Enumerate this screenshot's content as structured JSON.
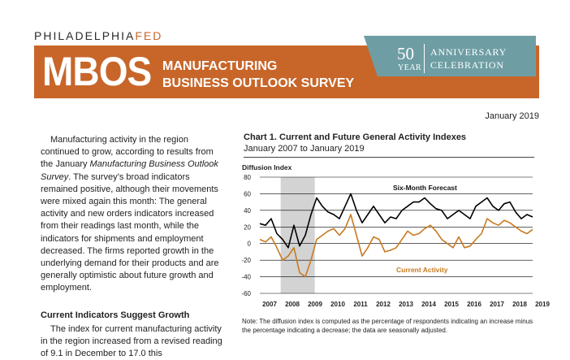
{
  "header": {
    "brand_main": "PHILADELPHIA",
    "brand_fed": "FED",
    "logo": "MBOS",
    "survey_line1": "MANUFACTURING",
    "survey_line2": "BUSINESS OUTLOOK SURVEY",
    "anniversary_number": "50",
    "anniversary_year": "YEAR",
    "anniversary_line1": "ANNIVERSARY",
    "anniversary_line2": "CELEBRATION",
    "date": "January 2019"
  },
  "colors": {
    "banner": "#c8662a",
    "anniversary": "#6e9ea4",
    "recession_band": "#d3d3d3",
    "forecast_line": "#000000",
    "current_line": "#c8791f"
  },
  "article": {
    "paragraph1_before": "Manufacturing activity in the region continued to grow, according to results from the January ",
    "paragraph1_italic": "Manufacturing Business Outlook Survey",
    "paragraph1_after": ". The survey’s broad indicators remained positive, although their movements were mixed again this month: The general activity and new orders indicators increased from their readings last month, while the indicators for shipments and employment decreased. The firms reported growth in the underlying demand for their products and are generally optimistic about future growth and employment.",
    "section_heading": "Current Indicators Suggest Growth",
    "paragraph2": "The index for current manufacturing activity in the region increased from a revised reading of 9.1 in December to 17.0 this"
  },
  "chart_data": {
    "type": "line",
    "title": "Chart 1. Current and Future General Activity Indexes",
    "subtitle": "January 2007 to January 2019",
    "ylabel": "Diffusion Index",
    "ylim": [
      -60,
      80
    ],
    "yticks": [
      "80",
      "60",
      "40",
      "20",
      "0",
      "-20",
      "-40",
      "-60"
    ],
    "xticks": [
      "2007",
      "2008",
      "2009",
      "2010",
      "2011",
      "2012",
      "2013",
      "2014",
      "2015",
      "2016",
      "2017",
      "2018",
      "2019"
    ],
    "recession_shading": {
      "start": "Dec 2007",
      "end": "Jun 2009"
    },
    "grid": "horizontal",
    "series": [
      {
        "name": "Six-Month Forecast",
        "label": "Six-Month Forecast",
        "color": "#000000",
        "x": [
          2007.0,
          2007.25,
          2007.5,
          2007.75,
          2008.0,
          2008.25,
          2008.5,
          2008.75,
          2009.0,
          2009.25,
          2009.5,
          2009.75,
          2010.0,
          2010.25,
          2010.5,
          2010.75,
          2011.0,
          2011.25,
          2011.5,
          2011.75,
          2012.0,
          2012.25,
          2012.5,
          2012.75,
          2013.0,
          2013.25,
          2013.5,
          2013.75,
          2014.0,
          2014.25,
          2014.5,
          2014.75,
          2015.0,
          2015.25,
          2015.5,
          2015.75,
          2016.0,
          2016.25,
          2016.5,
          2016.75,
          2017.0,
          2017.25,
          2017.5,
          2017.75,
          2018.0,
          2018.25,
          2018.5,
          2018.75,
          2019.0
        ],
        "values": [
          24,
          22,
          30,
          12,
          5,
          -5,
          22,
          -3,
          10,
          35,
          55,
          45,
          38,
          35,
          30,
          45,
          60,
          40,
          25,
          35,
          45,
          35,
          25,
          32,
          30,
          40,
          45,
          50,
          50,
          55,
          48,
          42,
          40,
          30,
          35,
          40,
          35,
          30,
          45,
          50,
          55,
          45,
          40,
          48,
          50,
          38,
          30,
          35,
          32
        ]
      },
      {
        "name": "Current Activity",
        "label": "Current Activity",
        "color": "#c8791f",
        "x": [
          2007.0,
          2007.25,
          2007.5,
          2007.75,
          2008.0,
          2008.25,
          2008.5,
          2008.75,
          2009.0,
          2009.25,
          2009.5,
          2009.75,
          2010.0,
          2010.25,
          2010.5,
          2010.75,
          2011.0,
          2011.25,
          2011.5,
          2011.75,
          2012.0,
          2012.25,
          2012.5,
          2012.75,
          2013.0,
          2013.25,
          2013.5,
          2013.75,
          2014.0,
          2014.25,
          2014.5,
          2014.75,
          2015.0,
          2015.25,
          2015.5,
          2015.75,
          2016.0,
          2016.25,
          2016.5,
          2016.75,
          2017.0,
          2017.25,
          2017.5,
          2017.75,
          2018.0,
          2018.25,
          2018.5,
          2018.75,
          2019.0
        ],
        "values": [
          5,
          2,
          8,
          -5,
          -20,
          -15,
          -5,
          -35,
          -40,
          -20,
          5,
          10,
          15,
          18,
          10,
          18,
          35,
          10,
          -15,
          -5,
          8,
          5,
          -10,
          -8,
          -5,
          5,
          15,
          10,
          12,
          18,
          22,
          15,
          5,
          0,
          -5,
          8,
          -5,
          -3,
          5,
          12,
          30,
          25,
          22,
          28,
          25,
          20,
          15,
          12,
          17
        ]
      }
    ]
  },
  "chart_note": "Note: The diffusion index is computed as the percentage of respondents indicating an increase minus the percentage indicating a decrease; the data are seasonally adjusted."
}
